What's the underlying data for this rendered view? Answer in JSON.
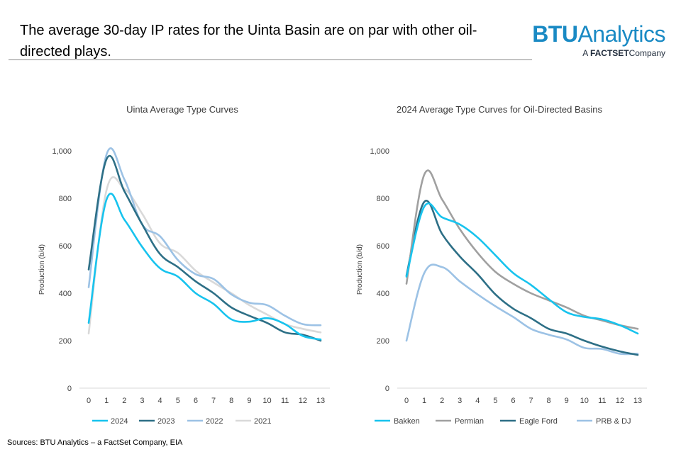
{
  "headline": "The average 30-day IP rates for the Uinta Basin are on par with other oil-directed plays.",
  "logo": {
    "btu": "BTU",
    "analytics": "Analytics",
    "sub_prefix": "A",
    "sub_brand": "FACTSET",
    "sub_suffix": "Company"
  },
  "source": "Sources: BTU Analytics – a FactSet Company, EIA",
  "chart_data": [
    {
      "type": "line",
      "title": "Uinta Average Type Curves",
      "xlabel": "",
      "ylabel": "Production (b/d)",
      "x": [
        0,
        1,
        2,
        3,
        4,
        5,
        6,
        7,
        8,
        9,
        10,
        11,
        12,
        13
      ],
      "ylim": [
        0,
        1000
      ],
      "yticks": [
        0,
        200,
        400,
        600,
        800,
        1000
      ],
      "ytick_labels": [
        "0",
        "200",
        "400",
        "600",
        "800",
        "1,000"
      ],
      "legend_position": "bottom",
      "series": [
        {
          "name": "2024",
          "color": "#17c3ee",
          "values": [
            275,
            795,
            710,
            595,
            505,
            470,
            400,
            355,
            290,
            280,
            295,
            270,
            220,
            205
          ]
        },
        {
          "name": "2023",
          "color": "#2d6f86",
          "values": [
            500,
            965,
            830,
            690,
            565,
            510,
            450,
            400,
            340,
            305,
            275,
            235,
            225,
            200
          ]
        },
        {
          "name": "2022",
          "color": "#9cc2e5",
          "values": [
            425,
            985,
            880,
            690,
            640,
            540,
            480,
            460,
            395,
            360,
            350,
            305,
            270,
            265
          ]
        },
        {
          "name": "2021",
          "color": "#d9d9d9",
          "values": [
            230,
            835,
            840,
            735,
            610,
            570,
            495,
            445,
            400,
            350,
            310,
            270,
            250,
            235
          ]
        }
      ]
    },
    {
      "type": "line",
      "title": "2024 Average Type Curves for Oil-Directed Basins",
      "xlabel": "",
      "ylabel": "Production (b/d)",
      "x": [
        0,
        1,
        2,
        3,
        4,
        5,
        6,
        7,
        8,
        9,
        10,
        11,
        12,
        13
      ],
      "ylim": [
        0,
        1000
      ],
      "yticks": [
        0,
        200,
        400,
        600,
        800,
        1000
      ],
      "ytick_labels": [
        "0",
        "200",
        "400",
        "600",
        "800",
        "1,000"
      ],
      "legend_position": "bottom",
      "series": [
        {
          "name": "Bakken",
          "color": "#17c3ee",
          "values": [
            470,
            765,
            720,
            690,
            635,
            560,
            485,
            435,
            375,
            320,
            300,
            290,
            265,
            230
          ]
        },
        {
          "name": "Permian",
          "color": "#a0a0a0",
          "values": [
            440,
            900,
            795,
            670,
            570,
            490,
            440,
            400,
            370,
            340,
            305,
            285,
            265,
            250
          ]
        },
        {
          "name": "Eagle Ford",
          "color": "#2d6f86",
          "values": [
            475,
            785,
            650,
            555,
            480,
            395,
            335,
            295,
            250,
            230,
            200,
            175,
            155,
            140
          ]
        },
        {
          "name": "PRB & DJ",
          "color": "#9cc2e5",
          "values": [
            200,
            485,
            510,
            450,
            395,
            345,
            300,
            250,
            225,
            205,
            170,
            165,
            145,
            145
          ]
        }
      ]
    }
  ]
}
